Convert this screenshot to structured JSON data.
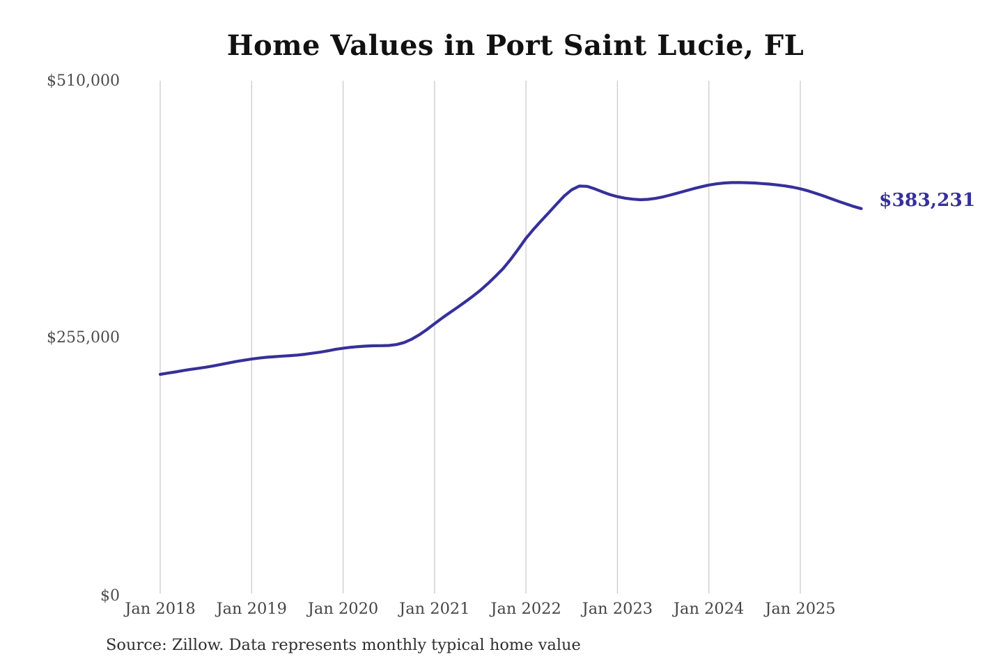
{
  "chart": {
    "title": "Home Values in Port Saint Lucie, FL"
  },
  "chart_data": {
    "type": "line",
    "title": "Home Values in Port Saint Lucie, FL",
    "xlabel": "",
    "ylabel": "",
    "unit": "USD",
    "frequency": "monthly",
    "x_start": "Jan 2018",
    "x_end": "Sep 2025",
    "x_ticks": [
      "Jan 2018",
      "Jan 2019",
      "Jan 2020",
      "Jan 2021",
      "Jan 2022",
      "Jan 2023",
      "Jan 2024",
      "Jan 2025"
    ],
    "y_ticks": [
      {
        "label": "$0",
        "value": 0
      },
      {
        "label": "$255,000",
        "value": 255000
      },
      {
        "label": "$510,000",
        "value": 510000
      }
    ],
    "ylim": [
      0,
      510000
    ],
    "grid": "vertical-only",
    "legend": "none",
    "line_color": "#36309a",
    "gridline_color": "#cccccc",
    "latest_value": 383231,
    "latest_label": "$383,231",
    "values": [
      219000,
      220200,
      221400,
      222700,
      223900,
      225000,
      226100,
      227400,
      228800,
      230300,
      231800,
      233000,
      234200,
      235100,
      235900,
      236500,
      237000,
      237500,
      238100,
      238900,
      239900,
      241000,
      242300,
      243700,
      244900,
      245800,
      246500,
      247000,
      247300,
      247400,
      247600,
      248500,
      250500,
      253800,
      258200,
      263400,
      269200,
      274800,
      280100,
      285300,
      290700,
      296300,
      302200,
      308900,
      316200,
      323800,
      333000,
      343200,
      353800,
      362800,
      371200,
      379300,
      387600,
      395600,
      401900,
      405600,
      405300,
      402900,
      399900,
      397200,
      395100,
      393600,
      392600,
      392100,
      392400,
      393400,
      394900,
      396800,
      398900,
      401000,
      403000,
      404900,
      406600,
      407800,
      408600,
      409000,
      409100,
      408900,
      408600,
      408100,
      407500,
      406700,
      405700,
      404500,
      402900,
      400900,
      398500,
      395900,
      393200,
      390500,
      387900,
      385400,
      383231
    ]
  },
  "footer": {
    "source": "Source: Zillow. Data represents monthly typical home value"
  }
}
